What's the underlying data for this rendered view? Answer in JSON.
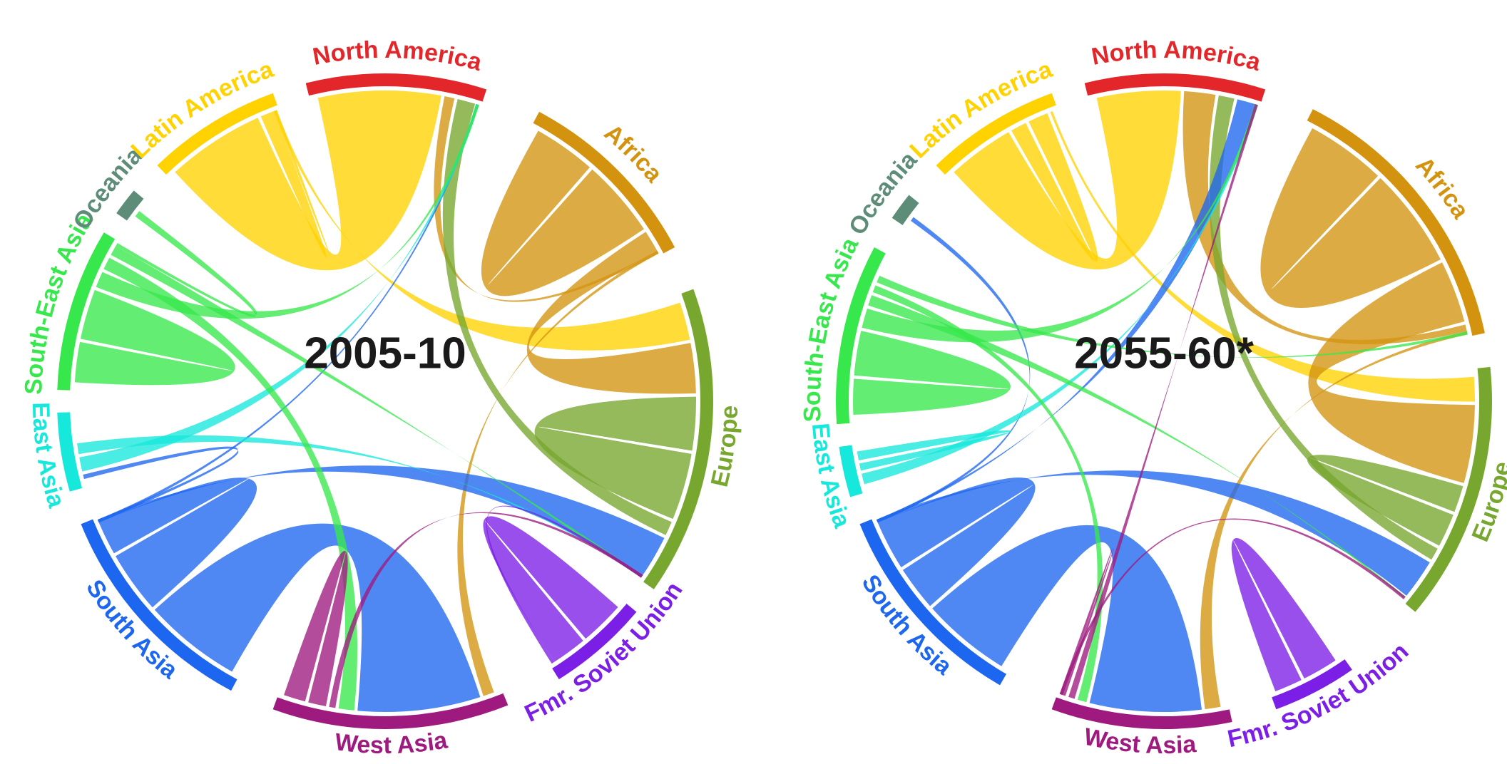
{
  "regions": [
    {
      "name": "North America",
      "color": "#e3262a"
    },
    {
      "name": "Africa",
      "color": "#d4930f"
    },
    {
      "name": "Europe",
      "color": "#77a72e"
    },
    {
      "name": "Fmr. Soviet Union",
      "color": "#7b1ee6"
    },
    {
      "name": "West Asia",
      "color": "#9e1a7e"
    },
    {
      "name": "South Asia",
      "color": "#1d66ef"
    },
    {
      "name": "East Asia",
      "color": "#16e8dc"
    },
    {
      "name": "South-East Asia",
      "color": "#37e84c"
    },
    {
      "name": "Oceania",
      "color": "#5d8c78"
    },
    {
      "name": "Latin America",
      "color": "#ffd200"
    }
  ],
  "panels": [
    {
      "period": "2005-10",
      "arcs": [
        {
          "region": "North America",
          "start": 346,
          "end": 18
        },
        {
          "region": "Africa",
          "start": 28,
          "end": 62
        },
        {
          "region": "Europe",
          "start": 70,
          "end": 125
        },
        {
          "region": "Fmr. Soviet Union",
          "start": 130,
          "end": 148
        },
        {
          "region": "West Asia",
          "start": 158,
          "end": 200
        },
        {
          "region": "South Asia",
          "start": 208,
          "end": 248
        },
        {
          "region": "East Asia",
          "start": 254,
          "end": 268
        },
        {
          "region": "South-East Asia",
          "start": 272,
          "end": 301
        },
        {
          "region": "Oceania",
          "start": 305,
          "end": 310
        },
        {
          "region": "Latin America",
          "start": 316,
          "end": 340
        }
      ],
      "flows": [
        {
          "from": "Latin America",
          "to": "North America",
          "width": 110
        },
        {
          "from": "Latin America",
          "to": "Latin America",
          "width": 18
        },
        {
          "from": "Latin America",
          "to": "Europe",
          "width": 34
        },
        {
          "from": "Africa",
          "to": "Africa",
          "width": 70
        },
        {
          "from": "Africa",
          "to": "Europe",
          "width": 45
        },
        {
          "from": "Africa",
          "to": "North America",
          "width": 9
        },
        {
          "from": "Africa",
          "to": "West Asia",
          "width": 10
        },
        {
          "from": "Europe",
          "to": "Europe",
          "width": 60
        },
        {
          "from": "Europe",
          "to": "North America",
          "width": 16
        },
        {
          "from": "South Asia",
          "to": "West Asia",
          "width": 110
        },
        {
          "from": "South Asia",
          "to": "South Asia",
          "width": 70
        },
        {
          "from": "South Asia",
          "to": "North America",
          "width": 24
        },
        {
          "from": "South Asia",
          "to": "Europe",
          "width": 42
        },
        {
          "from": "South Asia",
          "to": "East Asia",
          "width": 4
        },
        {
          "from": "East Asia",
          "to": "North America",
          "width": 16
        },
        {
          "from": "East Asia",
          "to": "Europe",
          "width": 12
        },
        {
          "from": "South-East Asia",
          "to": "South-East Asia",
          "width": 45
        },
        {
          "from": "South-East Asia",
          "to": "North America",
          "width": 18
        },
        {
          "from": "South-East Asia",
          "to": "West Asia",
          "width": 14
        },
        {
          "from": "South-East Asia",
          "to": "Europe",
          "width": 14
        },
        {
          "from": "South-East Asia",
          "to": "Oceania",
          "width": 6
        },
        {
          "from": "Fmr. Soviet Union",
          "to": "Fmr. Soviet Union",
          "width": 50
        },
        {
          "from": "Fmr. Soviet Union",
          "to": "Europe",
          "width": 10
        },
        {
          "from": "West Asia",
          "to": "Europe",
          "width": 7
        },
        {
          "from": "West Asia",
          "to": "West Asia",
          "width": 20
        }
      ]
    },
    {
      "period": "2055-60*",
      "arcs": [
        {
          "region": "North America",
          "start": 346,
          "end": 18
        },
        {
          "region": "Africa",
          "start": 27,
          "end": 78
        },
        {
          "region": "Europe",
          "start": 84,
          "end": 130
        },
        {
          "region": "Fmr. Soviet Union",
          "start": 145,
          "end": 160
        },
        {
          "region": "West Asia",
          "start": 168,
          "end": 200
        },
        {
          "region": "South Asia",
          "start": 210,
          "end": 248
        },
        {
          "region": "East Asia",
          "start": 253,
          "end": 262
        },
        {
          "region": "South-East Asia",
          "start": 266,
          "end": 298
        },
        {
          "region": "Oceania",
          "start": 304,
          "end": 309
        },
        {
          "region": "Latin America",
          "start": 316,
          "end": 340
        }
      ],
      "flows": [
        {
          "from": "Latin America",
          "to": "North America",
          "width": 75
        },
        {
          "from": "Latin America",
          "to": "Latin America",
          "width": 18
        },
        {
          "from": "Latin America",
          "to": "Europe",
          "width": 22
        },
        {
          "from": "Africa",
          "to": "Africa",
          "width": 90
        },
        {
          "from": "Africa",
          "to": "Europe",
          "width": 70
        },
        {
          "from": "Africa",
          "to": "North America",
          "width": 28
        },
        {
          "from": "Africa",
          "to": "West Asia",
          "width": 14
        },
        {
          "from": "Europe",
          "to": "Europe",
          "width": 30
        },
        {
          "from": "Europe",
          "to": "North America",
          "width": 14
        },
        {
          "from": "South Asia",
          "to": "West Asia",
          "width": 100
        },
        {
          "from": "South Asia",
          "to": "South Asia",
          "width": 50
        },
        {
          "from": "South Asia",
          "to": "North America",
          "width": 60
        },
        {
          "from": "South Asia",
          "to": "Europe",
          "width": 36
        },
        {
          "from": "South Asia",
          "to": "Oceania",
          "width": 4
        },
        {
          "from": "East Asia",
          "to": "North America",
          "width": 12
        },
        {
          "from": "East Asia",
          "to": "East Asia",
          "width": 8
        },
        {
          "from": "South-East Asia",
          "to": "South-East Asia",
          "width": 40
        },
        {
          "from": "South-East Asia",
          "to": "North America",
          "width": 22
        },
        {
          "from": "South-East Asia",
          "to": "Europe",
          "width": 12
        },
        {
          "from": "South-East Asia",
          "to": "West Asia",
          "width": 8
        },
        {
          "from": "South-East Asia",
          "to": "Africa",
          "width": 8
        },
        {
          "from": "Fmr. Soviet Union",
          "to": "Fmr. Soviet Union",
          "width": 40
        },
        {
          "from": "West Asia",
          "to": "North America",
          "width": 7
        },
        {
          "from": "West Asia",
          "to": "West Asia",
          "width": 24
        },
        {
          "from": "West Asia",
          "to": "Europe",
          "width": 6
        }
      ]
    }
  ]
}
